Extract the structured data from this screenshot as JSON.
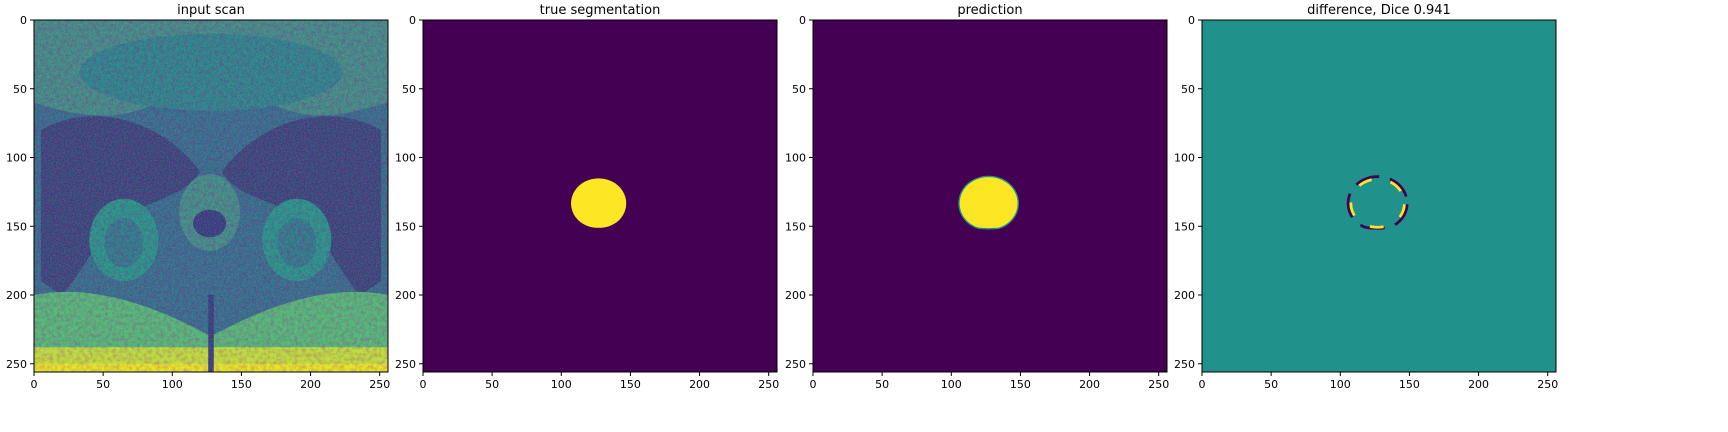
{
  "figure": {
    "panels": [
      {
        "id": "input-scan",
        "title": "input scan",
        "kind": "scan"
      },
      {
        "id": "true-segmentation",
        "title": "true segmentation",
        "kind": "mask",
        "blob_scale": 1.0
      },
      {
        "id": "prediction",
        "title": "prediction",
        "kind": "mask",
        "blob_scale": 1.05
      },
      {
        "id": "difference",
        "title": "difference, Dice 0.941",
        "kind": "diff"
      }
    ],
    "axes": {
      "x_ticks": [
        0,
        50,
        100,
        150,
        200,
        250
      ],
      "y_ticks": [
        0,
        50,
        100,
        150,
        200,
        250
      ],
      "xlim": [
        0,
        256
      ],
      "ylim": [
        256,
        0
      ],
      "x_tick_labels": [
        "0",
        "50",
        "100",
        "150",
        "200",
        "250"
      ],
      "y_tick_labels": [
        "0",
        "50",
        "100",
        "150",
        "200",
        "250"
      ]
    },
    "colormap": {
      "name": "viridis",
      "low": "#440154",
      "mid": "#21918c",
      "high": "#fde725"
    },
    "structure_center": [
      127,
      134
    ]
  }
}
